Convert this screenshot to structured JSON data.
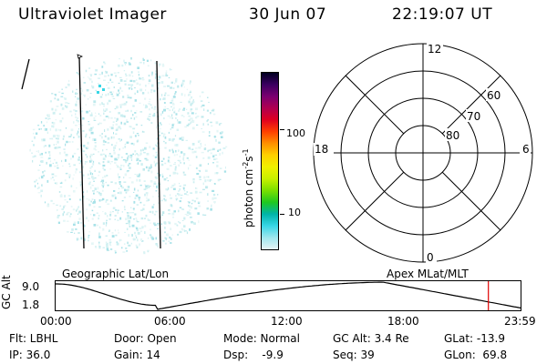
{
  "header": {
    "instrument": "Ultraviolet Imager",
    "date": "30 Jun 07",
    "time": "22:19:07 UT"
  },
  "colorbar": {
    "unit_label": "photon cm",
    "unit_exp1": "-2",
    "unit_s": "s",
    "unit_exp2": "-1",
    "ticks": [
      "100",
      "10"
    ],
    "colors": [
      "#e6f4f4",
      "#9fe6ee",
      "#38d6e6",
      "#00b4a8",
      "#1fc81f",
      "#7adf00",
      "#c8f000",
      "#f0f000",
      "#ffd000",
      "#ff9000",
      "#ff4000",
      "#e00020",
      "#b00050",
      "#7a0070",
      "#3a0060",
      "#000020"
    ]
  },
  "polar_plot": {
    "hour_labels": {
      "top": "12",
      "left": "18",
      "right": "6",
      "bottom": "0"
    },
    "lat_labels": [
      "60",
      "70",
      "80"
    ]
  },
  "timeline": {
    "left_label": "Geographic Lat/Lon",
    "right_label": "Apex MLat/MLT",
    "y_axis_title": "GC Alt",
    "y_ticks": [
      "9.0",
      "1.8"
    ],
    "x_ticks": [
      "00:00",
      "06:00",
      "12:00",
      "18:00",
      "23:59"
    ],
    "marker_time_hours": 22.32,
    "marker_color": "#e00000"
  },
  "status": {
    "flt": "Flt: LBHL",
    "ip": "IP: 36.0",
    "door": "Door: Open",
    "gain": "Gain: 14",
    "mode": "Mode: Normal",
    "dsp": "Dsp:    -9.9",
    "gcalt": "GC Alt: 3.4 Re",
    "seq": "Seq: 39",
    "glat": "GLat: -13.9",
    "glon": "GLon:  69.8"
  }
}
